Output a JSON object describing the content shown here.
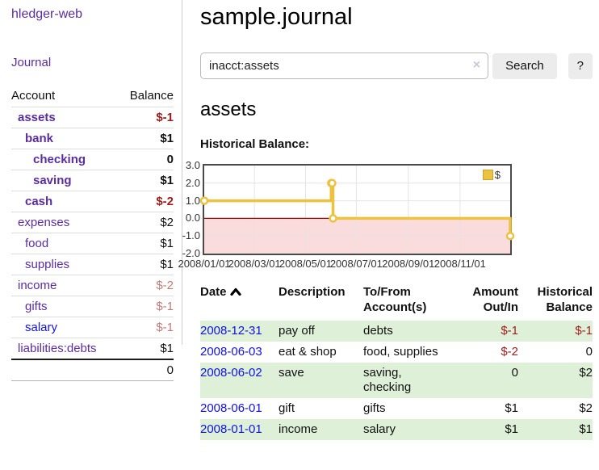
{
  "app": {
    "brand": "hledger-web",
    "nav": {
      "journal": "Journal"
    }
  },
  "sidebar": {
    "accounts_table": {
      "headers": {
        "account": "Account",
        "balance": "Balance"
      },
      "rows": [
        {
          "account": "assets",
          "balance": "$-1",
          "level": 1,
          "bold": true,
          "negative": "strong",
          "blue": false
        },
        {
          "account": "bank",
          "balance": "$1",
          "level": 2,
          "bold": true,
          "negative": "none",
          "blue": false
        },
        {
          "account": "checking",
          "balance": "0",
          "level": 3,
          "bold": true,
          "negative": "none",
          "blue": false
        },
        {
          "account": "saving",
          "balance": "$1",
          "level": 3,
          "bold": true,
          "negative": "none",
          "blue": false
        },
        {
          "account": "cash",
          "balance": "$-2",
          "level": 2,
          "bold": true,
          "negative": "strong",
          "blue": false
        },
        {
          "account": "expenses",
          "balance": "$2",
          "level": 1,
          "bold": false,
          "negative": "none",
          "blue": false
        },
        {
          "account": "food",
          "balance": "$1",
          "level": 2,
          "bold": false,
          "negative": "none",
          "blue": false
        },
        {
          "account": "supplies",
          "balance": "$1",
          "level": 2,
          "bold": false,
          "negative": "none",
          "blue": false
        },
        {
          "account": "income",
          "balance": "$-2",
          "level": 1,
          "bold": false,
          "negative": "soft",
          "blue": false
        },
        {
          "account": "gifts",
          "balance": "$-1",
          "level": 2,
          "bold": false,
          "negative": "soft",
          "blue": false
        },
        {
          "account": "salary",
          "balance": "$-1",
          "level": 2,
          "bold": false,
          "negative": "soft",
          "blue": true
        },
        {
          "account": "liabilities:debts",
          "balance": "$1",
          "level": 1,
          "bold": false,
          "negative": "none",
          "blue": false
        }
      ],
      "total": "0"
    }
  },
  "main": {
    "title": "sample.journal",
    "search": {
      "value": "inacct:assets",
      "clear_icon": "×",
      "submit_label": "Search",
      "help_label": "?"
    },
    "account_heading": "assets",
    "chart_heading": "Historical Balance:"
  },
  "chart_data": {
    "type": "line",
    "step": true,
    "title": "Historical Balance:",
    "x_range": [
      "2008/01/01",
      "2008/12/31"
    ],
    "ylim": [
      -2,
      3
    ],
    "yticks": [
      "3.0",
      "2.0",
      "1.0",
      "0.0",
      "-1.0",
      "-2.0"
    ],
    "xticks": [
      {
        "label": "2008/01/01",
        "f": 0.0
      },
      {
        "label": "2008/03/01",
        "f": 0.164
      },
      {
        "label": "2008/05/01",
        "f": 0.331
      },
      {
        "label": "2008/07/01",
        "f": 0.497
      },
      {
        "label": "2008/09/01",
        "f": 0.667
      },
      {
        "label": "2008/11/01",
        "f": 0.836
      }
    ],
    "series": [
      {
        "name": "$",
        "color": "#edc240",
        "points": [
          {
            "date": "2008/01/01",
            "f": 0.0,
            "y": 1
          },
          {
            "date": "2008/06/01",
            "f": 0.415,
            "y": 2
          },
          {
            "date": "2008/06/02",
            "f": 0.418,
            "y": 2
          },
          {
            "date": "2008/06/03",
            "f": 0.421,
            "y": 0
          },
          {
            "date": "2008/12/31",
            "f": 1.0,
            "y": -1
          }
        ]
      }
    ],
    "negative_region_color": "#fbdcdc",
    "zero_line_color": "#a40000",
    "grid_color": "#e4e4e4",
    "legend": {
      "label": "$",
      "position": "top-right"
    }
  },
  "register": {
    "columns": [
      {
        "key": "date",
        "lines": [
          "Date"
        ],
        "align": "left",
        "icon": "chevron-up-icon",
        "sortable": true
      },
      {
        "key": "description",
        "lines": [
          "Description"
        ],
        "align": "left"
      },
      {
        "key": "accounts",
        "lines": [
          "To/From",
          "Account(s)"
        ],
        "align": "left"
      },
      {
        "key": "amount",
        "lines": [
          "Amount",
          "Out/In"
        ],
        "align": "right"
      },
      {
        "key": "balance",
        "lines": [
          "Historical",
          "Balance"
        ],
        "align": "right"
      }
    ],
    "rows": [
      {
        "date": "2008-12-31",
        "description": "pay off",
        "accounts_lines": [
          "debts"
        ],
        "amount": "$-1",
        "amount_neg": true,
        "balance": "$-1",
        "balance_neg": true,
        "shaded": true
      },
      {
        "date": "2008-06-03",
        "description": "eat & shop",
        "accounts_lines": [
          "food, supplies"
        ],
        "amount": "$-2",
        "amount_neg": true,
        "balance": "0",
        "balance_neg": false,
        "shaded": false
      },
      {
        "date": "2008-06-02",
        "description": "save",
        "accounts_lines": [
          "saving,",
          "checking"
        ],
        "amount": "0",
        "amount_neg": false,
        "balance": "$2",
        "balance_neg": false,
        "shaded": true
      },
      {
        "date": "2008-06-01",
        "description": "gift",
        "accounts_lines": [
          "gifts"
        ],
        "amount": "$1",
        "amount_neg": false,
        "balance": "$2",
        "balance_neg": false,
        "shaded": false
      },
      {
        "date": "2008-01-01",
        "description": "income",
        "accounts_lines": [
          "salary"
        ],
        "amount": "$1",
        "amount_neg": false,
        "balance": "$1",
        "balance_neg": false,
        "shaded": true
      }
    ]
  },
  "colors": {
    "link_purple": "#5b2d9e",
    "link_blue": "#1212e0",
    "negative_strong": "#9e1b1b",
    "negative_soft": "#be7b7b",
    "row_stripe_green": "#def0d8",
    "series_gold": "#edc240"
  }
}
